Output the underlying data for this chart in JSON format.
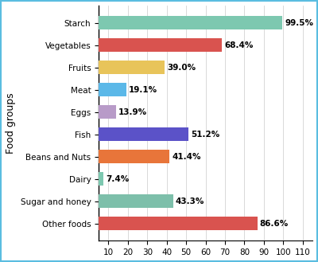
{
  "categories": [
    "Starch",
    "Vegetables",
    "Fruits",
    "Meat",
    "Eggs",
    "Fish",
    "Beans and Nuts",
    "Dairy",
    "Sugar and honey",
    "Other foods"
  ],
  "values": [
    99.5,
    68.4,
    39.0,
    19.1,
    13.9,
    51.2,
    41.4,
    7.4,
    43.3,
    86.6
  ],
  "labels": [
    "99.5%",
    "68.4%",
    "39.0%",
    "19.1%",
    "13.9%",
    "51.2%",
    "41.4%",
    "7.4%",
    "43.3%",
    "86.6%"
  ],
  "colors": [
    "#7dc8b0",
    "#d9534f",
    "#e8c45a",
    "#5bb8e8",
    "#b89bc8",
    "#5b52c8",
    "#e8753a",
    "#7dc8b0",
    "#7dbfaa",
    "#d9534f"
  ],
  "ylabel": "Food groups",
  "xlim": [
    5,
    115
  ],
  "xticks": [
    10,
    20,
    30,
    40,
    50,
    60,
    70,
    80,
    90,
    100,
    110
  ],
  "border_color": "#5bbde0",
  "bg_color": "#ffffff",
  "bar_height": 0.6,
  "label_fontsize": 7.5,
  "ylabel_fontsize": 9,
  "tick_fontsize": 7.5
}
